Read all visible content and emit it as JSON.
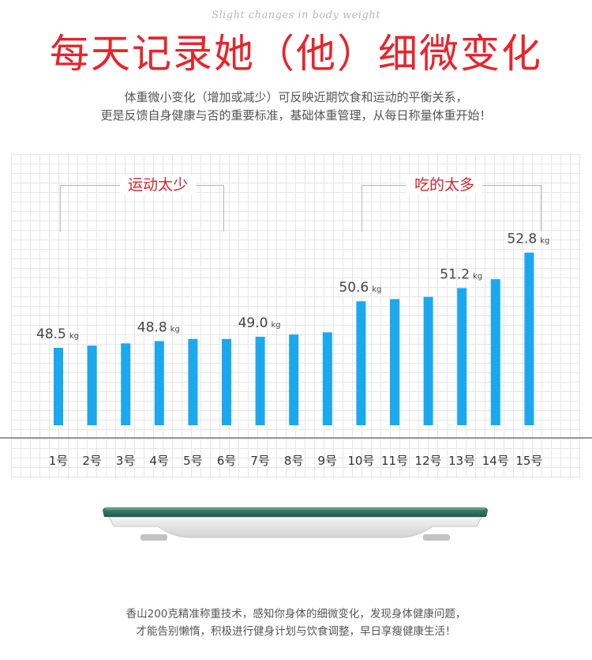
{
  "header": {
    "script_line": "Slight changes in body weight",
    "title_red": "每天记录",
    "title_rest": "她（他）细微变化"
  },
  "intro": {
    "line1": "体重微小变化（增加或减少）可反映近期饮食和运动的平衡关系，",
    "line2": "更是反馈自身健康与否的重要标准，基础体重管理，从每日称量体重开始！"
  },
  "annotations": {
    "left": "运动太少",
    "right": "吃的太多"
  },
  "colors": {
    "accent_red": "#e8242b",
    "bar_blue": "#1aa8ee",
    "text_gray": "#555555"
  },
  "chart_data": {
    "type": "bar",
    "categories": [
      "1号",
      "2号",
      "3号",
      "4号",
      "5号",
      "6号",
      "7号",
      "8号",
      "9号",
      "10号",
      "11号",
      "12号",
      "13号",
      "14号",
      "15号"
    ],
    "values": [
      48.5,
      48.6,
      48.7,
      48.8,
      48.9,
      48.9,
      49.0,
      49.1,
      49.2,
      50.6,
      50.7,
      50.8,
      51.2,
      51.6,
      52.8
    ],
    "unit": "kg",
    "value_labels": [
      {
        "index": 0,
        "value": "48.5",
        "unit": "kg"
      },
      {
        "index": 3,
        "value": "48.8",
        "unit": "kg"
      },
      {
        "index": 6,
        "value": "49.0",
        "unit": "kg"
      },
      {
        "index": 9,
        "value": "50.6",
        "unit": "kg"
      },
      {
        "index": 12,
        "value": "51.2",
        "unit": "kg"
      },
      {
        "index": 14,
        "value": "52.8",
        "unit": "kg"
      }
    ],
    "ylim": [
      45.0,
      53.5
    ],
    "grid": true
  },
  "footer": {
    "line1": "香山200克精准称重技术，感知你身体的细微变化，发现身体健康问题，",
    "line2": "才能告别懒惰，积极进行健身计划与饮食调整，早日享瘦健康生活！"
  }
}
